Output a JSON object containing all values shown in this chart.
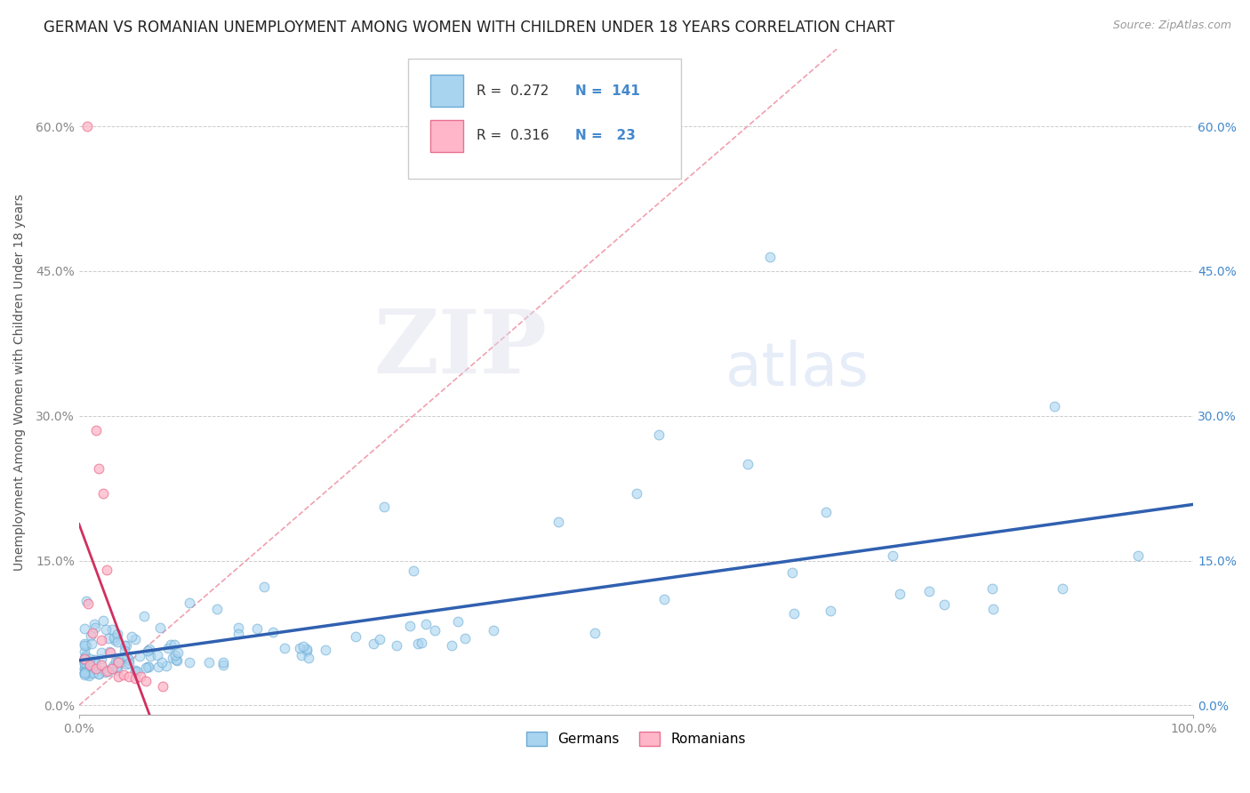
{
  "title": "GERMAN VS ROMANIAN UNEMPLOYMENT AMONG WOMEN WITH CHILDREN UNDER 18 YEARS CORRELATION CHART",
  "source": "Source: ZipAtlas.com",
  "ylabel": "Unemployment Among Women with Children Under 18 years",
  "xlim": [
    0.0,
    1.0
  ],
  "ylim": [
    -0.01,
    0.68
  ],
  "yticks": [
    0.0,
    0.15,
    0.3,
    0.45,
    0.6
  ],
  "ytick_labels": [
    "0.0%",
    "15.0%",
    "30.0%",
    "45.0%",
    "60.0%"
  ],
  "xtick_labels_left": "0.0%",
  "xtick_labels_right": "100.0%",
  "german_color": "#A8D4F0",
  "german_edge_color": "#6BAAD4",
  "romanian_color": "#FFB6C8",
  "romanian_edge_color": "#E87090",
  "german_line_color": "#3060B0",
  "romanian_line_color": "#D03060",
  "ref_line_color": "#F0A0B0",
  "R_german": 0.272,
  "N_german": 141,
  "R_romanian": 0.316,
  "N_romanian": 23,
  "watermark_zip": "ZIP",
  "watermark_atlas": "atlas",
  "background_color": "#FFFFFF",
  "grid_color": "#CCCCCC",
  "title_fontsize": 12,
  "axis_label_fontsize": 10,
  "tick_fontsize": 10,
  "right_tick_color": "#4488CC",
  "legend_label_german": "Germans",
  "legend_label_romanian": "Romanians",
  "german_line_y0": 0.03,
  "german_line_y1": 0.118,
  "romanian_line_x_max": 0.075,
  "romanian_line_y0": 0.002,
  "romanian_line_y1": 0.3
}
